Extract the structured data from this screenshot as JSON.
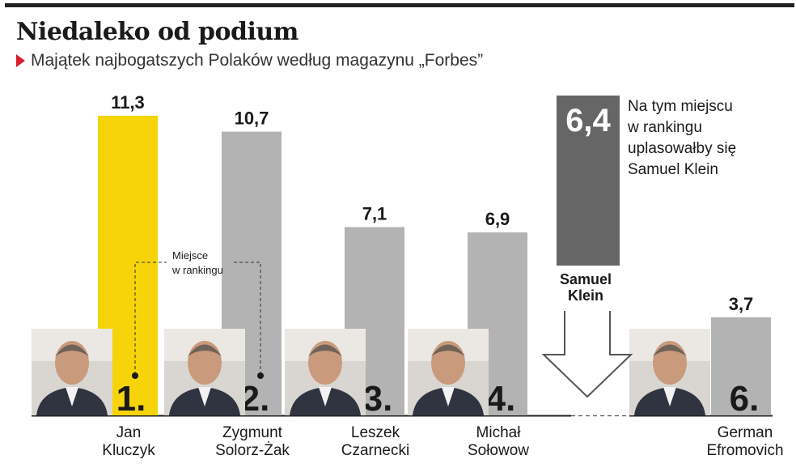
{
  "title": "Niedaleko od podium",
  "subtitle": "Majątek najbogatszych Polaków według magazynu „Forbes”",
  "colors": {
    "top_rule": "#222222",
    "marker": "#d81e2c",
    "first_place": "#f7d40a",
    "other_places": "#b3b3b3",
    "klein_bar": "#666666"
  },
  "rank_note": [
    "Miejsce",
    "w rankingu"
  ],
  "klein": {
    "value": "6,4",
    "name_lines": [
      "Samuel",
      "Klein"
    ],
    "note_lines": [
      "Na tym miejscu",
      "w rankingu",
      "uplasowałby się",
      "Samuel Klein"
    ]
  },
  "chart_data": {
    "type": "bar",
    "title": "Niedaleko od podium",
    "subtitle": "Majątek najbogatszych Polaków według magazynu „Forbes”",
    "series": [
      {
        "values": [
          11.3,
          10.7,
          7.1,
          6.9,
          3.7
        ]
      }
    ],
    "labels": [
      "11,3",
      "10,7",
      "7,1",
      "6,9",
      "3,7"
    ],
    "categories": [
      {
        "name_lines": [
          "Jan",
          "Kluczyk"
        ],
        "rank": "1.",
        "photo": "portrait-jan-kluczyk"
      },
      {
        "name_lines": [
          "Zygmunt",
          "Solorz-Żak"
        ],
        "rank": "2.",
        "photo": "portrait-zygmunt-solorz-zak"
      },
      {
        "name_lines": [
          "Leszek",
          "Czarnecki"
        ],
        "rank": "3.",
        "photo": "portrait-leszek-czarnecki"
      },
      {
        "name_lines": [
          "Michał",
          "Sołowow"
        ],
        "rank": "4.",
        "photo": "portrait-michal-solowow"
      },
      {
        "name_lines": [
          "German",
          "Efromovich"
        ],
        "rank": "6.",
        "photo": "portrait-german-efromovich"
      }
    ],
    "highlight": {
      "name": "Samuel Klein",
      "value": 6.4,
      "label": "6,4",
      "rank_position": 5
    },
    "grid": false,
    "legend": "none"
  }
}
